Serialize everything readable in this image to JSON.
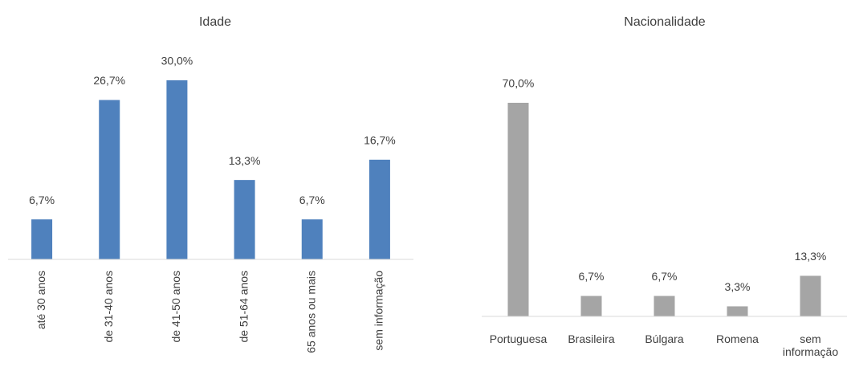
{
  "chart_data": [
    {
      "type": "bar",
      "title": "Idade",
      "categories": [
        "até 30 anos",
        "de 31-40 anos",
        "de 41-50 anos",
        "de 51-64 anos",
        "65 anos ou mais",
        "sem informação"
      ],
      "values": [
        6.7,
        26.7,
        30.0,
        13.3,
        6.7,
        16.7
      ],
      "value_labels": [
        "6,7%",
        "26,7%",
        "30,0%",
        "13,3%",
        "6,7%",
        "16,7%"
      ],
      "color": "#4f81bd"
    },
    {
      "type": "bar",
      "title": "Nacionalidade",
      "categories": [
        "Portuguesa",
        "Brasileira",
        "Búlgara",
        "Romena",
        "sem informação"
      ],
      "values": [
        70.0,
        6.7,
        6.7,
        3.3,
        13.3
      ],
      "value_labels": [
        "70,0%",
        "6,7%",
        "6,7%",
        "3,3%",
        "13,3%"
      ],
      "color": "#a5a5a5"
    }
  ]
}
